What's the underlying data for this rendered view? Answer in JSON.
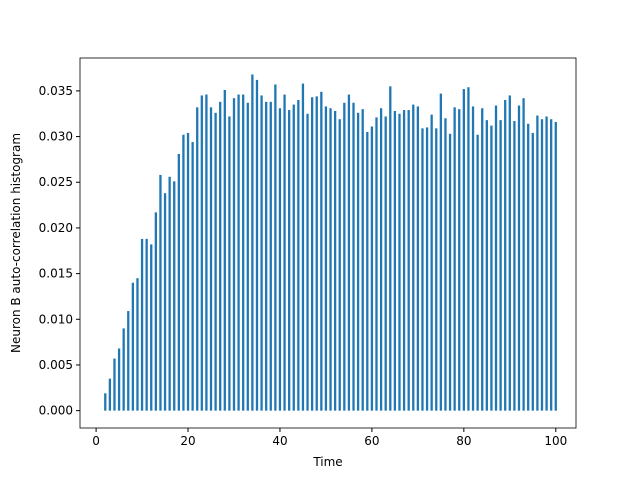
{
  "chart_data": {
    "type": "bar",
    "x_label": "Time",
    "y_label": "Neuron B auto-correlation histogram",
    "color": "#1f77b4",
    "bar_width": 0.5,
    "x": [
      2,
      3,
      4,
      5,
      6,
      7,
      8,
      9,
      10,
      11,
      12,
      13,
      14,
      15,
      16,
      17,
      18,
      19,
      20,
      21,
      22,
      23,
      24,
      25,
      26,
      27,
      28,
      29,
      30,
      31,
      32,
      33,
      34,
      35,
      36,
      37,
      38,
      39,
      40,
      41,
      42,
      43,
      44,
      45,
      46,
      47,
      48,
      49,
      50,
      51,
      52,
      53,
      54,
      55,
      56,
      57,
      58,
      59,
      60,
      61,
      62,
      63,
      64,
      65,
      66,
      67,
      68,
      69,
      70,
      71,
      72,
      73,
      74,
      75,
      76,
      77,
      78,
      79,
      80,
      81,
      82,
      83,
      84,
      85,
      86,
      87,
      88,
      89,
      90,
      91,
      92,
      93,
      94,
      95,
      96,
      97,
      98,
      99,
      100
    ],
    "values": [
      0.0019,
      0.0035,
      0.0057,
      0.0068,
      0.009,
      0.0109,
      0.014,
      0.0145,
      0.0188,
      0.0188,
      0.0182,
      0.0217,
      0.0258,
      0.0238,
      0.0256,
      0.0251,
      0.0281,
      0.0302,
      0.0304,
      0.0294,
      0.0332,
      0.0345,
      0.0346,
      0.0332,
      0.0326,
      0.0338,
      0.0351,
      0.0322,
      0.0342,
      0.0346,
      0.0346,
      0.0337,
      0.0368,
      0.0362,
      0.0345,
      0.0338,
      0.0338,
      0.0357,
      0.0331,
      0.0346,
      0.0329,
      0.0335,
      0.034,
      0.0358,
      0.0325,
      0.0343,
      0.0344,
      0.0349,
      0.0333,
      0.0331,
      0.0328,
      0.0319,
      0.0337,
      0.0346,
      0.0337,
      0.0326,
      0.033,
      0.0305,
      0.0311,
      0.0321,
      0.0331,
      0.0322,
      0.0355,
      0.0328,
      0.0325,
      0.0329,
      0.0329,
      0.0335,
      0.0333,
      0.0309,
      0.031,
      0.0324,
      0.0309,
      0.0347,
      0.032,
      0.0303,
      0.0332,
      0.033,
      0.0352,
      0.0354,
      0.0333,
      0.0302,
      0.0331,
      0.0318,
      0.0312,
      0.0334,
      0.0318,
      0.034,
      0.0345,
      0.0317,
      0.0334,
      0.0342,
      0.0314,
      0.0304,
      0.0323,
      0.0319,
      0.0322,
      0.0319,
      0.0316
    ],
    "xlim": [
      -3.5,
      104.4
    ],
    "ylim": [
      -0.0019,
      0.0386
    ],
    "xticks": [
      0,
      20,
      40,
      60,
      80,
      100
    ],
    "yticks": [
      {
        "value": 0,
        "label": "0.000"
      },
      {
        "value": 0.005,
        "label": "0.005"
      },
      {
        "value": 0.01,
        "label": "0.010"
      },
      {
        "value": 0.015,
        "label": "0.015"
      },
      {
        "value": 0.02,
        "label": "0.020"
      },
      {
        "value": 0.025,
        "label": "0.025"
      },
      {
        "value": 0.03,
        "label": "0.030"
      },
      {
        "value": 0.035,
        "label": "0.035"
      }
    ]
  }
}
